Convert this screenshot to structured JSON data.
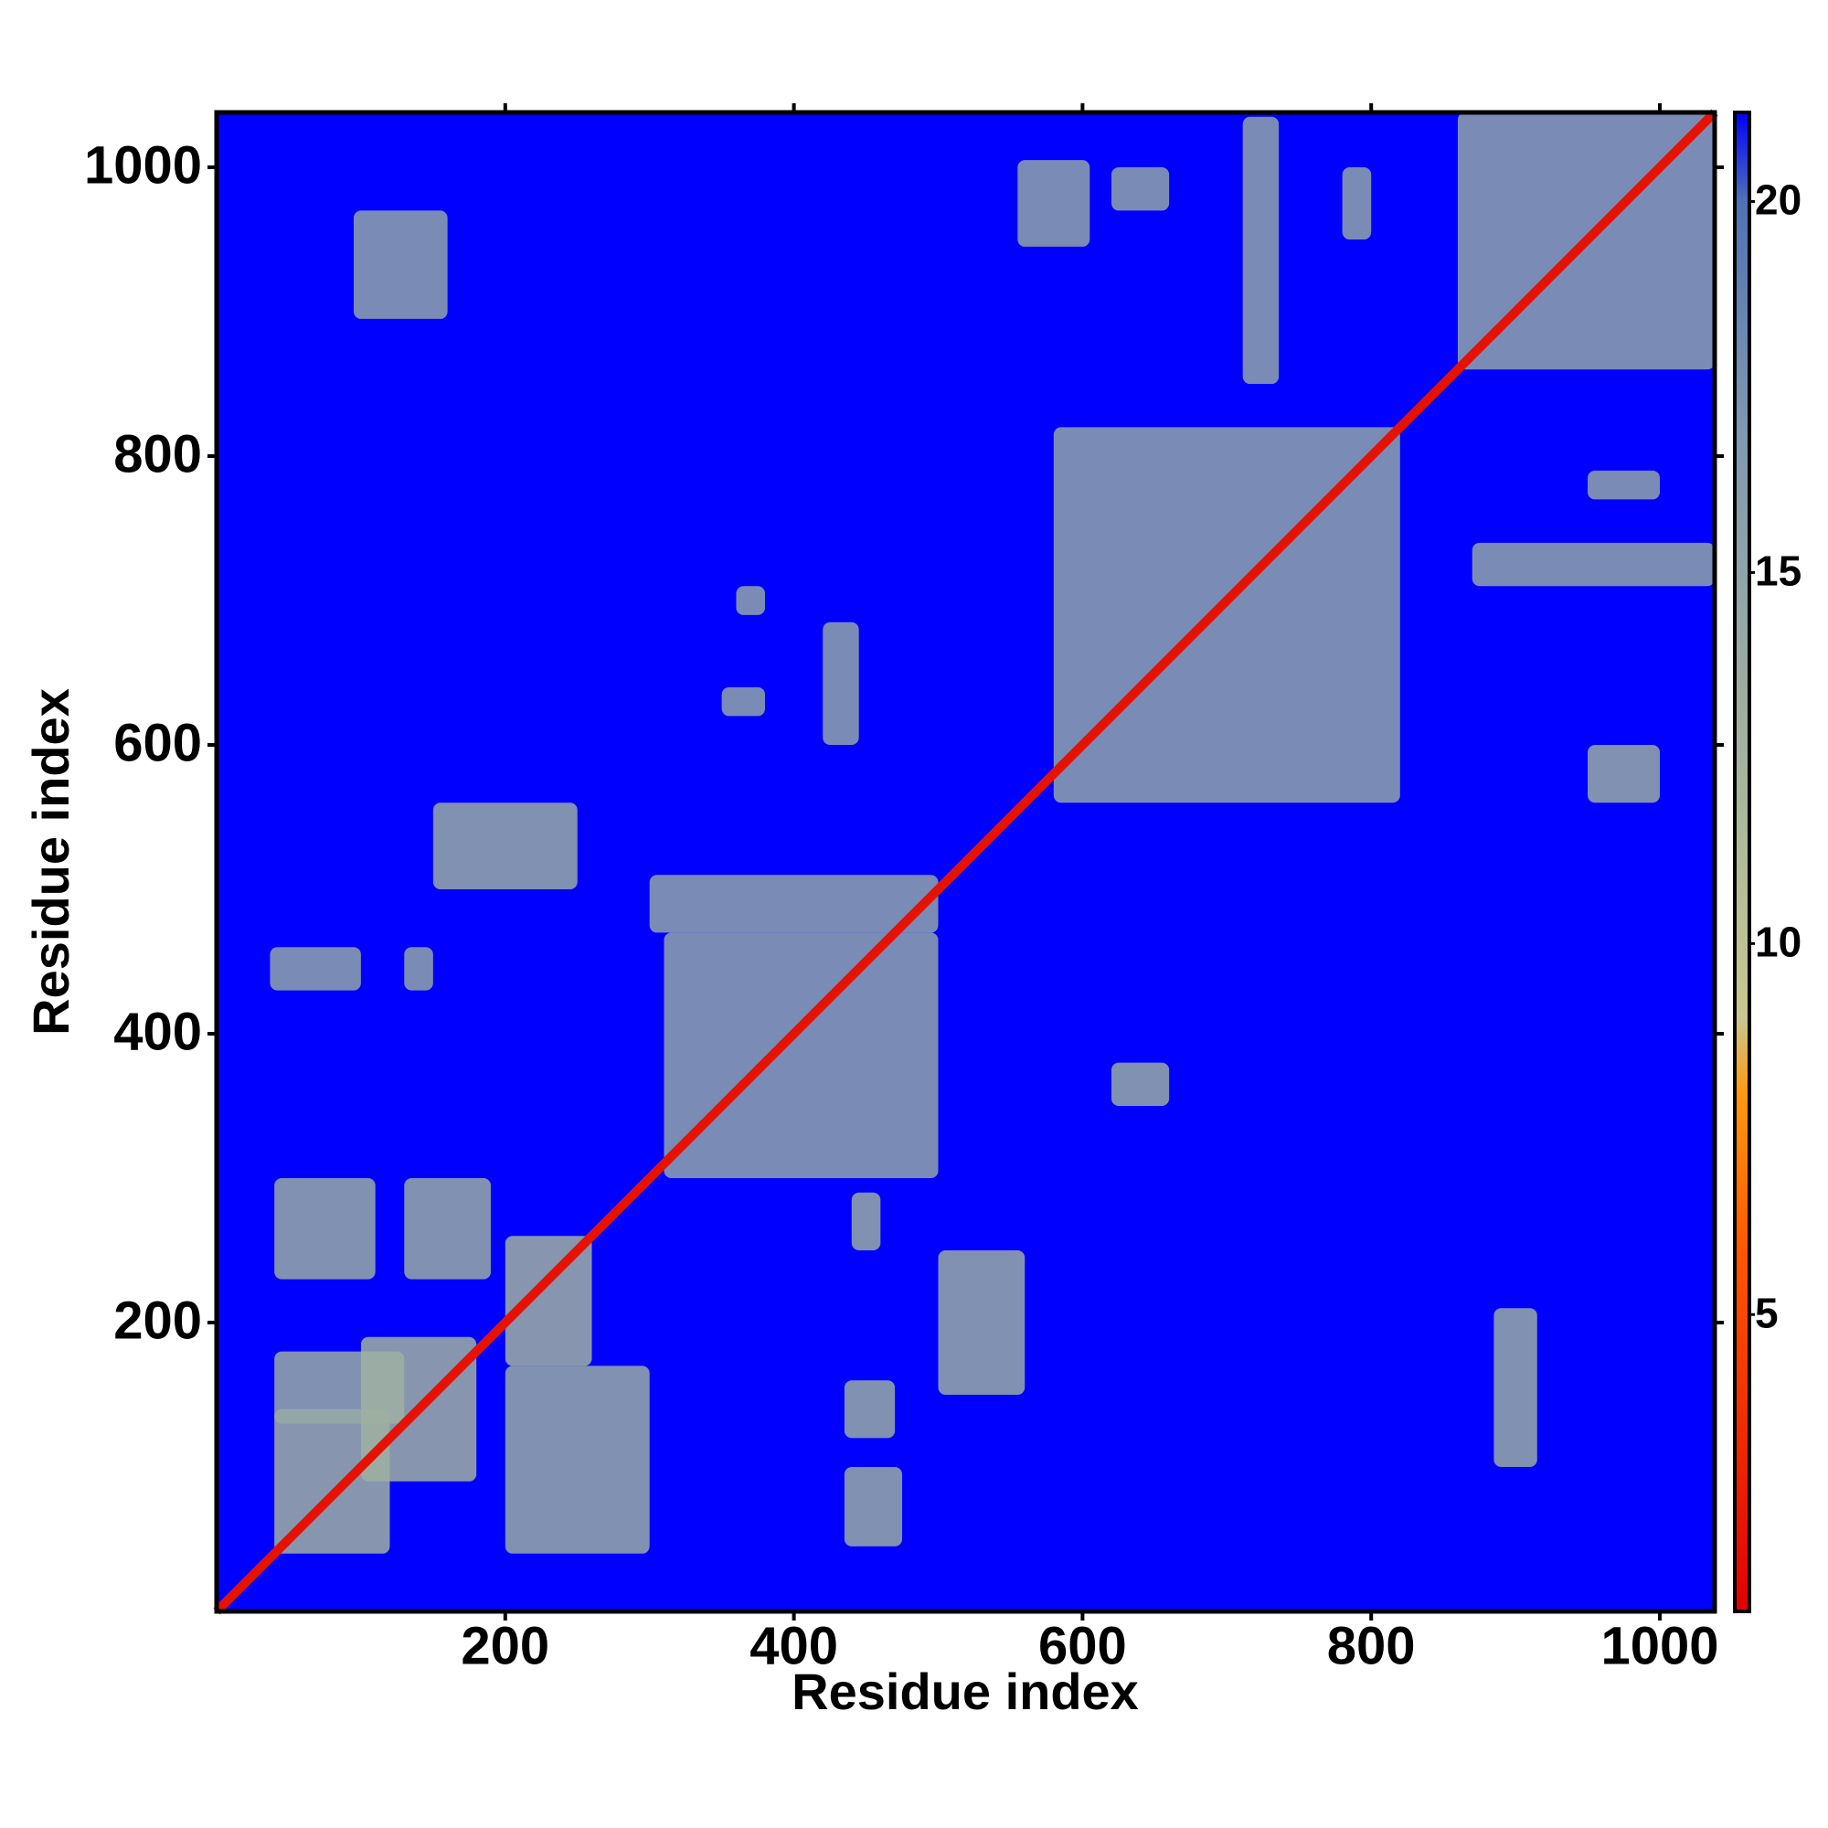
{
  "chart_data": {
    "type": "heatmap",
    "x_label": "Residue index",
    "y_label": "Residue index",
    "xlim": [
      0,
      1038
    ],
    "ylim": [
      0,
      1038
    ],
    "xticks": [
      200,
      400,
      600,
      800,
      1000
    ],
    "yticks": [
      200,
      400,
      600,
      800,
      1000
    ],
    "background_value": 21.2,
    "colorbar": {
      "lim": [
        1,
        21.2
      ],
      "ticks": [
        5,
        10,
        15,
        20
      ]
    },
    "colorscale": [
      [
        1,
        "#e00000"
      ],
      [
        6,
        "#ff5a00"
      ],
      [
        8,
        "#ff9a10"
      ],
      [
        9,
        "#c8c890"
      ],
      [
        13,
        "#9fb0a0"
      ],
      [
        17,
        "#7f98b0"
      ],
      [
        20,
        "#4f72b4"
      ],
      [
        21.2,
        "#0000ff"
      ]
    ],
    "diagonal": {
      "from": 0,
      "to": 1038,
      "value": 2
    },
    "patches": [
      [
        40,
        120,
        40,
        140,
        13
      ],
      [
        40,
        130,
        130,
        180,
        14
      ],
      [
        100,
        180,
        90,
        190,
        13
      ],
      [
        200,
        300,
        40,
        170,
        14
      ],
      [
        40,
        110,
        230,
        300,
        14
      ],
      [
        130,
        190,
        230,
        300,
        14
      ],
      [
        200,
        260,
        170,
        260,
        13
      ],
      [
        310,
        500,
        300,
        470,
        15
      ],
      [
        300,
        500,
        470,
        510,
        15
      ],
      [
        580,
        820,
        560,
        820,
        15
      ],
      [
        860,
        1038,
        860,
        1038,
        15
      ],
      [
        435,
        475,
        45,
        100,
        14
      ],
      [
        435,
        470,
        120,
        160,
        14
      ],
      [
        500,
        560,
        150,
        250,
        14
      ],
      [
        150,
        250,
        500,
        560,
        14
      ],
      [
        440,
        460,
        250,
        290,
        14
      ],
      [
        620,
        660,
        350,
        380,
        14
      ],
      [
        885,
        915,
        100,
        210,
        14
      ],
      [
        950,
        1000,
        560,
        600,
        14
      ],
      [
        870,
        1038,
        710,
        740,
        15
      ],
      [
        950,
        1000,
        770,
        790,
        15
      ],
      [
        555,
        605,
        945,
        1005,
        15
      ],
      [
        711,
        736,
        850,
        1035,
        15
      ],
      [
        780,
        800,
        950,
        1000,
        15
      ],
      [
        620,
        660,
        970,
        1000,
        15
      ],
      [
        95,
        160,
        895,
        970,
        15
      ],
      [
        37,
        100,
        430,
        460,
        15
      ],
      [
        130,
        150,
        430,
        460,
        15
      ],
      [
        420,
        445,
        600,
        685,
        15
      ],
      [
        350,
        380,
        620,
        640,
        15
      ],
      [
        360,
        380,
        690,
        710,
        15
      ]
    ]
  }
}
